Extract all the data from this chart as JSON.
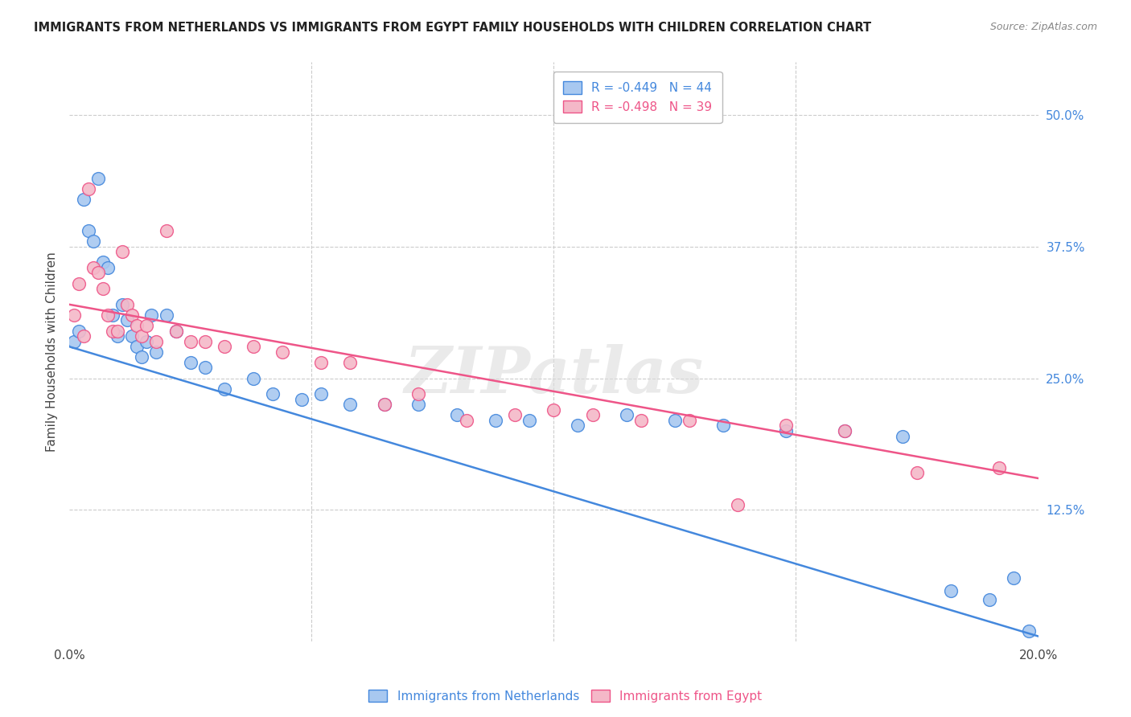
{
  "title": "IMMIGRANTS FROM NETHERLANDS VS IMMIGRANTS FROM EGYPT FAMILY HOUSEHOLDS WITH CHILDREN CORRELATION CHART",
  "source": "Source: ZipAtlas.com",
  "ylabel": "Family Households with Children",
  "xlim": [
    0.0,
    0.2
  ],
  "ylim": [
    0.0,
    0.55
  ],
  "legend_netherlands": "R = -0.449   N = 44",
  "legend_egypt": "R = -0.498   N = 39",
  "color_netherlands": "#a8c8f0",
  "color_egypt": "#f4b8c8",
  "line_color_netherlands": "#4488dd",
  "line_color_egypt": "#ee5588",
  "watermark": "ZIPatlas",
  "background_color": "#ffffff",
  "grid_color": "#cccccc",
  "nl_x": [
    0.001,
    0.002,
    0.003,
    0.004,
    0.005,
    0.006,
    0.007,
    0.008,
    0.009,
    0.01,
    0.011,
    0.012,
    0.013,
    0.014,
    0.015,
    0.016,
    0.017,
    0.018,
    0.02,
    0.022,
    0.025,
    0.028,
    0.032,
    0.038,
    0.042,
    0.048,
    0.052,
    0.058,
    0.065,
    0.072,
    0.08,
    0.088,
    0.095,
    0.105,
    0.115,
    0.125,
    0.135,
    0.148,
    0.16,
    0.172,
    0.182,
    0.19,
    0.195,
    0.198
  ],
  "nl_y": [
    0.285,
    0.295,
    0.42,
    0.39,
    0.38,
    0.44,
    0.36,
    0.355,
    0.31,
    0.29,
    0.32,
    0.305,
    0.29,
    0.28,
    0.27,
    0.285,
    0.31,
    0.275,
    0.31,
    0.295,
    0.265,
    0.26,
    0.24,
    0.25,
    0.235,
    0.23,
    0.235,
    0.225,
    0.225,
    0.225,
    0.215,
    0.21,
    0.21,
    0.205,
    0.215,
    0.21,
    0.205,
    0.2,
    0.2,
    0.195,
    0.048,
    0.04,
    0.06,
    0.01
  ],
  "eg_x": [
    0.001,
    0.002,
    0.003,
    0.004,
    0.005,
    0.006,
    0.007,
    0.008,
    0.009,
    0.01,
    0.011,
    0.012,
    0.013,
    0.014,
    0.015,
    0.016,
    0.018,
    0.02,
    0.022,
    0.025,
    0.028,
    0.032,
    0.038,
    0.044,
    0.052,
    0.058,
    0.065,
    0.072,
    0.082,
    0.092,
    0.1,
    0.108,
    0.118,
    0.128,
    0.138,
    0.148,
    0.16,
    0.175,
    0.192
  ],
  "eg_y": [
    0.31,
    0.34,
    0.29,
    0.43,
    0.355,
    0.35,
    0.335,
    0.31,
    0.295,
    0.295,
    0.37,
    0.32,
    0.31,
    0.3,
    0.29,
    0.3,
    0.285,
    0.39,
    0.295,
    0.285,
    0.285,
    0.28,
    0.28,
    0.275,
    0.265,
    0.265,
    0.225,
    0.235,
    0.21,
    0.215,
    0.22,
    0.215,
    0.21,
    0.21,
    0.13,
    0.205,
    0.2,
    0.16,
    0.165
  ]
}
